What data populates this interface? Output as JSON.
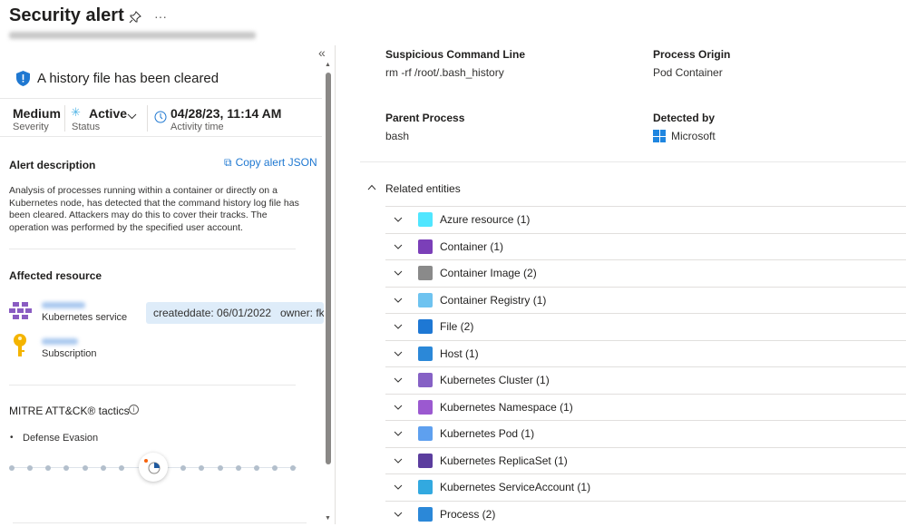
{
  "header": {
    "title": "Security alert",
    "pin_icon": "pin-icon",
    "more_icon": "more-icon"
  },
  "alert": {
    "title": "A history file has been cleared",
    "severity": {
      "value": "Medium",
      "label": "Severity"
    },
    "status": {
      "value": "Active",
      "label": "Status"
    },
    "activity": {
      "value": "04/28/23, 11:14 AM",
      "label": "Activity time"
    },
    "description_heading": "Alert description",
    "copy_json": "Copy alert JSON",
    "description": "Analysis of processes running within a container or directly on a Kubernetes node, has detected that the command history log file has been cleared. Attackers may do this to cover their tracks. The operation was performed by the specified user account.",
    "affected_heading": "Affected resource",
    "resources": [
      {
        "type": "Kubernetes service",
        "tags": [
          "createddate: 06/01/2022",
          "owner: fko"
        ]
      },
      {
        "type": "Subscription"
      }
    ],
    "mitre_heading": "MITRE ATT&CK® tactics",
    "tactics": [
      "Defense Evasion"
    ]
  },
  "details": {
    "fields": [
      {
        "label": "Suspicious Command Line",
        "value": "rm -rf /root/.bash_history"
      },
      {
        "label": "Process Origin",
        "value": "Pod Container"
      },
      {
        "label": "Parent Process",
        "value": "bash"
      },
      {
        "label": "Detected by",
        "value": "Microsoft"
      }
    ],
    "related_heading": "Related entities",
    "entities": [
      {
        "label": "Azure resource (1)",
        "color": "#50e6ff"
      },
      {
        "label": "Container (1)",
        "color": "#7b3fb8"
      },
      {
        "label": "Container Image (2)",
        "color": "#8a8a8a"
      },
      {
        "label": "Container Registry (1)",
        "color": "#6ec3f0"
      },
      {
        "label": "File (2)",
        "color": "#1e78d4"
      },
      {
        "label": "Host (1)",
        "color": "#2b88d8"
      },
      {
        "label": "Kubernetes Cluster (1)",
        "color": "#8661c5"
      },
      {
        "label": "Kubernetes Namespace (1)",
        "color": "#9b59d0"
      },
      {
        "label": "Kubernetes Pod (1)",
        "color": "#5ea0ef"
      },
      {
        "label": "Kubernetes ReplicaSet (1)",
        "color": "#5b3d9e"
      },
      {
        "label": "Kubernetes ServiceAccount (1)",
        "color": "#32a9e0"
      },
      {
        "label": "Process (2)",
        "color": "#2b88d8"
      }
    ]
  }
}
